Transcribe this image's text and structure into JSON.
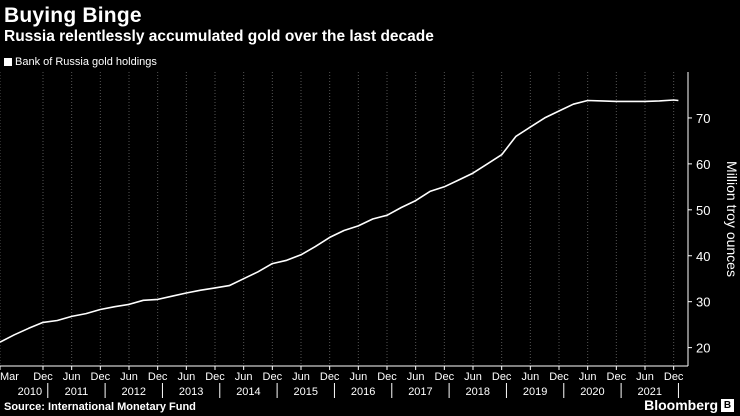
{
  "header": {
    "title": "Buying Binge",
    "subtitle": "Russia relentlessly accumulated gold over the last decade"
  },
  "footer": {
    "source": "Source: International Monetary Fund",
    "brand": "Bloomberg",
    "brand_icon": "bloomberg-b-icon"
  },
  "colors": {
    "background": "#000000",
    "line": "#ffffff",
    "grid": "#555555"
  },
  "chart_data": {
    "type": "line",
    "title": "Buying Binge",
    "subtitle": "Russia relentlessly accumulated gold over the last decade",
    "ylabel": "Million troy ounces",
    "ylim": [
      16,
      80
    ],
    "yticks": [
      20,
      30,
      40,
      50,
      60,
      70
    ],
    "xlim": [
      "2010-03",
      "2022-03"
    ],
    "grid": "vertical dotted lines at each month label",
    "legend_position": "top-left",
    "x_tick_months": [
      "Mar",
      "Dec",
      "Jun",
      "Dec",
      "Jun",
      "Dec",
      "Jun",
      "Dec",
      "Jun",
      "Dec",
      "Jun",
      "Dec",
      "Jun",
      "Dec",
      "Jun",
      "Dec",
      "Jun",
      "Dec",
      "Jun",
      "Dec",
      "Jun",
      "Dec",
      "Jun",
      "Dec"
    ],
    "x_tick_dates": [
      "2010-03",
      "2010-12",
      "2011-06",
      "2011-12",
      "2012-06",
      "2012-12",
      "2013-06",
      "2013-12",
      "2014-06",
      "2014-12",
      "2015-06",
      "2015-12",
      "2016-06",
      "2016-12",
      "2017-06",
      "2017-12",
      "2018-06",
      "2018-12",
      "2019-06",
      "2019-12",
      "2020-06",
      "2020-12",
      "2021-06",
      "2021-12"
    ],
    "x_tick_years": [
      "2010",
      "2011",
      "2012",
      "2013",
      "2014",
      "2015",
      "2016",
      "2017",
      "2018",
      "2019",
      "2020",
      "2021"
    ],
    "series": [
      {
        "name": "Bank of Russia gold holdings",
        "x": [
          "2010-03",
          "2010-06",
          "2010-09",
          "2010-12",
          "2011-03",
          "2011-06",
          "2011-09",
          "2011-12",
          "2012-03",
          "2012-06",
          "2012-09",
          "2012-12",
          "2013-03",
          "2013-06",
          "2013-09",
          "2013-12",
          "2014-03",
          "2014-06",
          "2014-09",
          "2014-12",
          "2015-03",
          "2015-06",
          "2015-09",
          "2015-12",
          "2016-03",
          "2016-06",
          "2016-09",
          "2016-12",
          "2017-03",
          "2017-06",
          "2017-09",
          "2017-12",
          "2018-03",
          "2018-06",
          "2018-09",
          "2018-12",
          "2019-03",
          "2019-06",
          "2019-09",
          "2019-12",
          "2020-03",
          "2020-06",
          "2020-09",
          "2020-12",
          "2021-03",
          "2021-06",
          "2021-09",
          "2021-12",
          "2022-01"
        ],
        "values": [
          21.2,
          22.8,
          24.2,
          25.5,
          25.9,
          26.8,
          27.4,
          28.3,
          28.9,
          29.4,
          30.3,
          30.5,
          31.2,
          31.9,
          32.5,
          33.0,
          33.5,
          35.0,
          36.5,
          38.3,
          39.0,
          40.2,
          42.0,
          44.0,
          45.5,
          46.5,
          48.0,
          48.8,
          50.5,
          52.0,
          54.0,
          55.0,
          56.5,
          58.0,
          60.0,
          62.0,
          66.0,
          68.0,
          70.0,
          71.5,
          73.0,
          73.8,
          73.7,
          73.6,
          73.6,
          73.6,
          73.7,
          73.9,
          73.8
        ]
      }
    ]
  }
}
